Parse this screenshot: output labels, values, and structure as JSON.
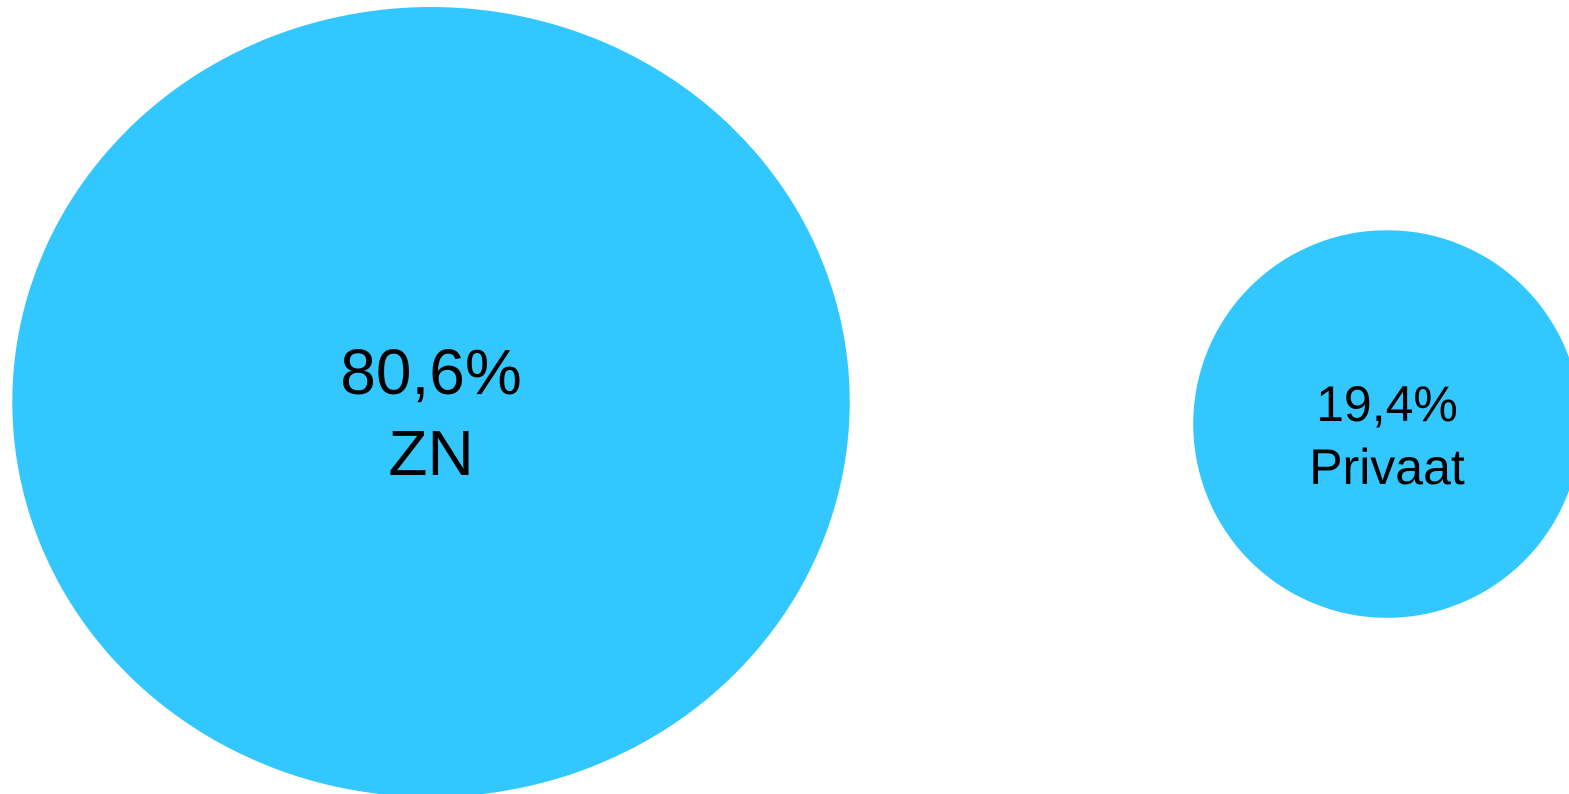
{
  "chart_data": {
    "type": "bubble",
    "categories": [
      "ZN",
      "Privaat"
    ],
    "values": [
      80.6,
      19.4
    ],
    "value_labels": [
      "80,6%",
      "19,4%"
    ],
    "color": "#33c7ff"
  }
}
